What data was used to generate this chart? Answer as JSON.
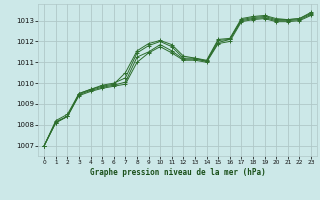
{
  "title": "Graphe pression niveau de la mer (hPa)",
  "bg_color": "#cce8e8",
  "grid_color": "#b0c8c8",
  "line_color": "#2d6e2d",
  "marker": "+",
  "xlim": [
    -0.5,
    23.5
  ],
  "ylim": [
    1006.5,
    1013.8
  ],
  "xticks": [
    0,
    1,
    2,
    3,
    4,
    5,
    6,
    7,
    8,
    9,
    10,
    11,
    12,
    13,
    14,
    15,
    16,
    17,
    18,
    19,
    20,
    21,
    22,
    23
  ],
  "yticks": [
    1007,
    1008,
    1009,
    1010,
    1011,
    1012,
    1013
  ],
  "series": [
    [
      1007.0,
      1008.2,
      1008.5,
      1009.5,
      1009.7,
      1009.85,
      1009.95,
      1010.5,
      1011.55,
      1011.9,
      1012.05,
      1011.85,
      1011.3,
      1011.2,
      1011.05,
      1012.05,
      1012.1,
      1013.05,
      1013.15,
      1013.2,
      1013.05,
      1013.05,
      1013.1,
      1013.35
    ],
    [
      1007.0,
      1008.15,
      1008.4,
      1009.45,
      1009.65,
      1009.8,
      1009.9,
      1010.05,
      1011.25,
      1011.5,
      1011.85,
      1011.55,
      1011.15,
      1011.15,
      1011.05,
      1011.95,
      1012.1,
      1013.0,
      1013.1,
      1013.15,
      1013.0,
      1013.0,
      1013.05,
      1013.3
    ],
    [
      1007.0,
      1008.1,
      1008.4,
      1009.4,
      1009.6,
      1009.75,
      1009.85,
      1009.95,
      1011.0,
      1011.45,
      1011.75,
      1011.45,
      1011.1,
      1011.1,
      1011.0,
      1011.9,
      1012.0,
      1012.95,
      1013.05,
      1013.1,
      1012.95,
      1012.95,
      1013.0,
      1013.25
    ],
    [
      1007.0,
      1008.1,
      1008.4,
      1009.5,
      1009.7,
      1009.9,
      1010.0,
      1010.25,
      1011.45,
      1011.8,
      1012.0,
      1011.75,
      1011.2,
      1011.2,
      1011.1,
      1012.1,
      1012.15,
      1013.1,
      1013.2,
      1013.25,
      1013.1,
      1013.05,
      1013.1,
      1013.4
    ]
  ]
}
